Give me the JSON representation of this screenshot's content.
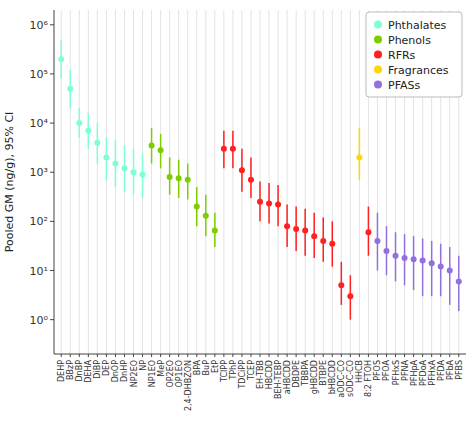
{
  "chart_data": {
    "type": "errorbar",
    "ylabel": "Pooled GM (ng/g), 95% CI",
    "log": "y",
    "grid": "x",
    "legend": "upper right",
    "marker": "circle",
    "ylim": [
      0.2,
      2000000
    ],
    "yticks": [
      {
        "value": 1,
        "label": "10⁰"
      },
      {
        "value": 10,
        "label": "10¹"
      },
      {
        "value": 100,
        "label": "10²"
      },
      {
        "value": 1000,
        "label": "10³"
      },
      {
        "value": 10000,
        "label": "10⁴"
      },
      {
        "value": 100000,
        "label": "10⁵"
      },
      {
        "value": 1000000,
        "label": "10⁶"
      }
    ],
    "categories": [
      "DEHP",
      "BBzP",
      "DnBP",
      "DEHA",
      "DiBP",
      "DEP",
      "DnOP",
      "DnHP",
      "NP2EO",
      "NP",
      "NP1EO",
      "MeP",
      "OP2EO",
      "OP1EO",
      "2,4-DHBZON",
      "BPA",
      "BuP",
      "EtP",
      "TCIPP",
      "TPhP",
      "TDCiPP",
      "TCEP",
      "EH-TBB",
      "HBCDD",
      "BEH-TEBP",
      "aHBCDD",
      "DBDPE",
      "TBBPA",
      "gHBCDD",
      "BTBPE",
      "bHBCDD",
      "aODC-CO",
      "sODC-CO",
      "HHCB",
      "8:2 FTOH",
      "PFOS",
      "PFOA",
      "PFHxS",
      "PFNA",
      "PFHpA",
      "PFDoA",
      "PFHxA",
      "PFDA",
      "PFbA",
      "PFBS"
    ],
    "series": [
      {
        "name": "Phthalates",
        "color": "#7fffd4",
        "values": [
          200000,
          50000,
          10000,
          7000,
          4000,
          2000,
          1500,
          1200,
          1000,
          900,
          null,
          null,
          null,
          null,
          null,
          null,
          null,
          null,
          null,
          null,
          null,
          null,
          null,
          null,
          null,
          null,
          null,
          null,
          null,
          null,
          null,
          null,
          null,
          null,
          null,
          null,
          null,
          null,
          null,
          null,
          null,
          null,
          null,
          null,
          null
        ],
        "ci_lower": [
          80000,
          20000,
          5000,
          3000,
          1500,
          700,
          500,
          400,
          350,
          300,
          null,
          null,
          null,
          null,
          null,
          null,
          null,
          null,
          null,
          null,
          null,
          null,
          null,
          null,
          null,
          null,
          null,
          null,
          null,
          null,
          null,
          null,
          null,
          null,
          null,
          null,
          null,
          null,
          null,
          null,
          null,
          null,
          null,
          null,
          null
        ],
        "ci_upper": [
          500000,
          120000,
          20000,
          16000,
          10000,
          5000,
          4500,
          3500,
          3000,
          2500,
          null,
          null,
          null,
          null,
          null,
          null,
          null,
          null,
          null,
          null,
          null,
          null,
          null,
          null,
          null,
          null,
          null,
          null,
          null,
          null,
          null,
          null,
          null,
          null,
          null,
          null,
          null,
          null,
          null,
          null,
          null,
          null,
          null,
          null,
          null
        ]
      },
      {
        "name": "Phenols",
        "color": "#7dcd00",
        "values": [
          null,
          null,
          null,
          null,
          null,
          null,
          null,
          null,
          null,
          null,
          3500,
          2800,
          800,
          750,
          700,
          200,
          130,
          65,
          null,
          null,
          null,
          null,
          null,
          null,
          null,
          null,
          null,
          null,
          null,
          null,
          null,
          null,
          null,
          null,
          null,
          null,
          null,
          null,
          null,
          null,
          null,
          null,
          null,
          null,
          null
        ],
        "ci_lower": [
          null,
          null,
          null,
          null,
          null,
          null,
          null,
          null,
          null,
          null,
          1500,
          1200,
          350,
          300,
          280,
          80,
          50,
          30,
          null,
          null,
          null,
          null,
          null,
          null,
          null,
          null,
          null,
          null,
          null,
          null,
          null,
          null,
          null,
          null,
          null,
          null,
          null,
          null,
          null,
          null,
          null,
          null,
          null,
          null,
          null
        ],
        "ci_upper": [
          null,
          null,
          null,
          null,
          null,
          null,
          null,
          null,
          null,
          null,
          8000,
          6000,
          2000,
          1800,
          1500,
          500,
          350,
          150,
          null,
          null,
          null,
          null,
          null,
          null,
          null,
          null,
          null,
          null,
          null,
          null,
          null,
          null,
          null,
          null,
          null,
          null,
          null,
          null,
          null,
          null,
          null,
          null,
          null,
          null,
          null
        ]
      },
      {
        "name": "RFRs",
        "color": "#ff2020",
        "values": [
          null,
          null,
          null,
          null,
          null,
          null,
          null,
          null,
          null,
          null,
          null,
          null,
          null,
          null,
          null,
          null,
          null,
          null,
          3000,
          3000,
          1100,
          700,
          250,
          230,
          220,
          80,
          70,
          65,
          50,
          40,
          35,
          5,
          3,
          null,
          60,
          null,
          null,
          null,
          null,
          null,
          null,
          null,
          null,
          null,
          null
        ],
        "ci_lower": [
          null,
          null,
          null,
          null,
          null,
          null,
          null,
          null,
          null,
          null,
          null,
          null,
          null,
          null,
          null,
          null,
          null,
          null,
          1200,
          1200,
          400,
          300,
          100,
          90,
          80,
          30,
          25,
          20,
          18,
          15,
          12,
          2,
          1,
          null,
          20,
          null,
          null,
          null,
          null,
          null,
          null,
          null,
          null,
          null,
          null
        ],
        "ci_upper": [
          null,
          null,
          null,
          null,
          null,
          null,
          null,
          null,
          null,
          null,
          null,
          null,
          null,
          null,
          null,
          null,
          null,
          null,
          7000,
          7000,
          3000,
          2000,
          650,
          600,
          550,
          220,
          200,
          180,
          150,
          120,
          100,
          15,
          8,
          null,
          200,
          null,
          null,
          null,
          null,
          null,
          null,
          null,
          null,
          null,
          null
        ]
      },
      {
        "name": "Fragrances",
        "color": "#ffd700",
        "values": [
          null,
          null,
          null,
          null,
          null,
          null,
          null,
          null,
          null,
          null,
          null,
          null,
          null,
          null,
          null,
          null,
          null,
          null,
          null,
          null,
          null,
          null,
          null,
          null,
          null,
          null,
          null,
          null,
          null,
          null,
          null,
          null,
          null,
          2000,
          null,
          null,
          null,
          null,
          null,
          null,
          null,
          null,
          null,
          null,
          null
        ],
        "ci_lower": [
          null,
          null,
          null,
          null,
          null,
          null,
          null,
          null,
          null,
          null,
          null,
          null,
          null,
          null,
          null,
          null,
          null,
          null,
          null,
          null,
          null,
          null,
          null,
          null,
          null,
          null,
          null,
          null,
          null,
          null,
          null,
          null,
          null,
          700,
          null,
          null,
          null,
          null,
          null,
          null,
          null,
          null,
          null,
          null,
          null
        ],
        "ci_upper": [
          null,
          null,
          null,
          null,
          null,
          null,
          null,
          null,
          null,
          null,
          null,
          null,
          null,
          null,
          null,
          null,
          null,
          null,
          null,
          null,
          null,
          null,
          null,
          null,
          null,
          null,
          null,
          null,
          null,
          null,
          null,
          null,
          null,
          8000,
          null,
          null,
          null,
          null,
          null,
          null,
          null,
          null,
          null,
          null,
          null
        ]
      },
      {
        "name": "PFASs",
        "color": "#9370db",
        "values": [
          null,
          null,
          null,
          null,
          null,
          null,
          null,
          null,
          null,
          null,
          null,
          null,
          null,
          null,
          null,
          null,
          null,
          null,
          null,
          null,
          null,
          null,
          null,
          null,
          null,
          null,
          null,
          null,
          null,
          null,
          null,
          null,
          null,
          null,
          null,
          40,
          25,
          20,
          18,
          17,
          16,
          14,
          12,
          10,
          6
        ],
        "ci_lower": [
          null,
          null,
          null,
          null,
          null,
          null,
          null,
          null,
          null,
          null,
          null,
          null,
          null,
          null,
          null,
          null,
          null,
          null,
          null,
          null,
          null,
          null,
          null,
          null,
          null,
          null,
          null,
          null,
          null,
          null,
          null,
          null,
          null,
          null,
          null,
          10,
          8,
          6,
          5,
          4,
          3,
          3,
          3,
          2,
          1.5
        ],
        "ci_upper": [
          null,
          null,
          null,
          null,
          null,
          null,
          null,
          null,
          null,
          null,
          null,
          null,
          null,
          null,
          null,
          null,
          null,
          null,
          null,
          null,
          null,
          null,
          null,
          null,
          null,
          null,
          null,
          null,
          null,
          null,
          null,
          null,
          null,
          null,
          null,
          150,
          80,
          60,
          55,
          50,
          45,
          40,
          35,
          30,
          20
        ]
      }
    ]
  }
}
